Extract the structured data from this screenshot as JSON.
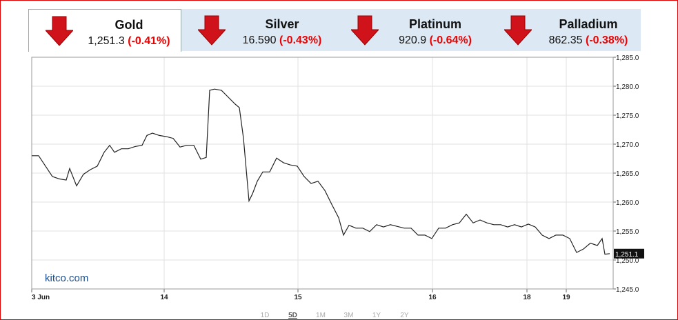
{
  "tabs": [
    {
      "name": "Gold",
      "price": "1,251.3",
      "change": "(-0.41%)"
    },
    {
      "name": "Silver",
      "price": "16.590",
      "change": "(-0.43%)"
    },
    {
      "name": "Platinum",
      "price": "920.9",
      "change": "(-0.64%)"
    },
    {
      "name": "Palladium",
      "price": "862.35",
      "change": "(-0.38%)"
    }
  ],
  "chart_data": {
    "type": "line",
    "color": "#222",
    "grid": true,
    "watermark": "kitco.com",
    "x": [
      0,
      10,
      20,
      30,
      40,
      50,
      55,
      65,
      75,
      85,
      95,
      105,
      113,
      120,
      130,
      140,
      150,
      160,
      167,
      175,
      185,
      195,
      205,
      215,
      225,
      235,
      245,
      253,
      258,
      265,
      275,
      285,
      295,
      301,
      307,
      315,
      320,
      327,
      335,
      345,
      355,
      365,
      375,
      385,
      395,
      405,
      415,
      425,
      435,
      445,
      452,
      460,
      470,
      480,
      490,
      500,
      510,
      520,
      530,
      540,
      550,
      560,
      570,
      580,
      590,
      600,
      610,
      620,
      630,
      640,
      650,
      660,
      670,
      680,
      690,
      700,
      710,
      720,
      730,
      740,
      750,
      760,
      770,
      780,
      790,
      800,
      810,
      820,
      827,
      831,
      838
    ],
    "values": [
      1268.0,
      1268.0,
      1266.2,
      1264.4,
      1264.0,
      1263.8,
      1265.8,
      1262.8,
      1264.8,
      1265.6,
      1266.2,
      1268.6,
      1269.8,
      1268.6,
      1269.2,
      1269.2,
      1269.6,
      1269.8,
      1271.5,
      1271.9,
      1271.5,
      1271.3,
      1271.0,
      1269.5,
      1269.8,
      1269.8,
      1267.4,
      1267.7,
      1279.3,
      1279.5,
      1279.3,
      1278.1,
      1276.9,
      1276.3,
      1271.0,
      1260.2,
      1261.4,
      1263.6,
      1265.2,
      1265.2,
      1267.6,
      1266.8,
      1266.4,
      1266.2,
      1264.4,
      1263.2,
      1263.6,
      1262.0,
      1259.6,
      1257.3,
      1254.3,
      1256.0,
      1255.5,
      1255.5,
      1254.9,
      1256.1,
      1255.7,
      1256.1,
      1255.8,
      1255.5,
      1255.5,
      1254.3,
      1254.3,
      1253.7,
      1255.5,
      1255.5,
      1256.1,
      1256.4,
      1257.9,
      1256.4,
      1256.9,
      1256.4,
      1256.1,
      1256.1,
      1255.7,
      1256.1,
      1255.7,
      1256.2,
      1255.7,
      1254.3,
      1253.7,
      1254.3,
      1254.3,
      1253.7,
      1251.3,
      1251.9,
      1252.9,
      1252.5,
      1253.7,
      1251.0,
      1251.1
    ],
    "last_label": "1,251.1",
    "xlim": [
      0,
      843
    ],
    "xticks": [
      {
        "value": 0,
        "label": "3 Jun"
      },
      {
        "value": 192,
        "label": "14"
      },
      {
        "value": 386,
        "label": "15"
      },
      {
        "value": 581,
        "label": "16"
      },
      {
        "value": 718,
        "label": "18"
      },
      {
        "value": 775,
        "label": "19"
      }
    ],
    "ylim": [
      1245,
      1285
    ],
    "yticks": [
      {
        "value": 1245,
        "label": "1,245.0"
      },
      {
        "value": 1250,
        "label": "1,250.0"
      },
      {
        "value": 1255,
        "label": "1,255.0"
      },
      {
        "value": 1260,
        "label": "1,260.0"
      },
      {
        "value": 1265,
        "label": "1,265.0"
      },
      {
        "value": 1270,
        "label": "1,270.0"
      },
      {
        "value": 1275,
        "label": "1,275.0"
      },
      {
        "value": 1280,
        "label": "1,280.0"
      },
      {
        "value": 1285,
        "label": "1,285.0"
      }
    ]
  },
  "range_buttons": [
    "1D",
    "5D",
    "1M",
    "3M",
    "1Y",
    "2Y"
  ]
}
